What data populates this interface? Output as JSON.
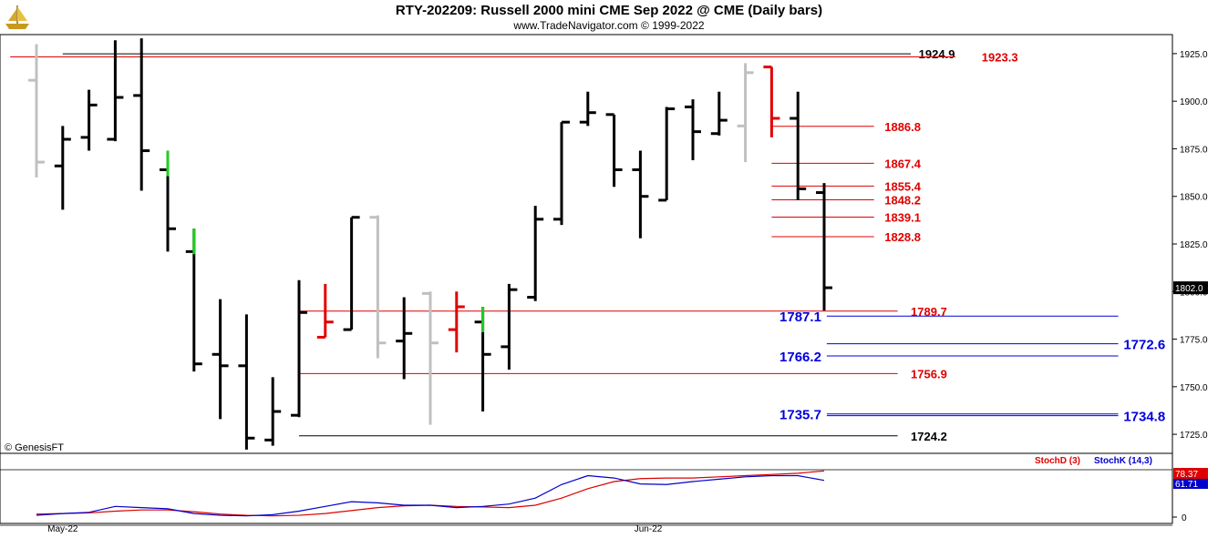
{
  "header": {
    "title": "RTY-202209:  Russell 2000 mini CME Sep 2022 @ CME  (Daily bars)",
    "subtitle": "www.TradeNavigator.com © 1999-2022"
  },
  "watermark": "© GenesisFT",
  "colors": {
    "black": "#000000",
    "red": "#e00000",
    "blue": "#0000dd",
    "gray": "#c0c0c0",
    "green": "#22cc22",
    "stochD": "#dd0000",
    "stochK": "#0000cc"
  },
  "chart_data": [
    {
      "type": "ohlc",
      "ylim": [
        1715,
        1935
      ],
      "yticks": [
        "1925.0",
        "1900.0",
        "1875.0",
        "1850.0",
        "1825.0",
        "1800.0",
        "1775.0",
        "1750.0",
        "1725.0"
      ],
      "xlabels": [
        "May-22",
        "Jun-22"
      ],
      "last_price": "1802.0",
      "bars": [
        {
          "high": 1930,
          "low": 1860,
          "open": 1911,
          "close": 1868,
          "color": "gray"
        },
        {
          "high": 1887,
          "low": 1843,
          "open": 1866,
          "close": 1880,
          "color": "black"
        },
        {
          "high": 1906,
          "low": 1874,
          "open": 1881,
          "close": 1898,
          "color": "black"
        },
        {
          "high": 1932,
          "low": 1879,
          "open": 1880,
          "close": 1902,
          "color": "black"
        },
        {
          "high": 1933,
          "low": 1853,
          "open": 1903,
          "close": 1874,
          "color": "black"
        },
        {
          "high": 1874,
          "low": 1821,
          "open": 1864,
          "close": 1833,
          "color": "black",
          "highlight": "green"
        },
        {
          "high": 1833,
          "low": 1758,
          "open": 1821,
          "close": 1762,
          "color": "black",
          "highlight": "green"
        },
        {
          "high": 1796,
          "low": 1733,
          "open": 1767,
          "close": 1761,
          "color": "black"
        },
        {
          "high": 1788,
          "low": 1717,
          "open": 1761,
          "close": 1723,
          "color": "black"
        },
        {
          "high": 1755,
          "low": 1719,
          "open": 1722,
          "close": 1737,
          "color": "black"
        },
        {
          "high": 1806,
          "low": 1734,
          "open": 1735,
          "close": 1789,
          "color": "black"
        },
        {
          "high": 1804,
          "low": 1776,
          "open": 1776,
          "close": 1784,
          "color": "red"
        },
        {
          "high": 1839,
          "low": 1780,
          "open": 1780,
          "close": 1839,
          "color": "black"
        },
        {
          "high": 1840,
          "low": 1765,
          "open": 1839,
          "close": 1773,
          "color": "gray"
        },
        {
          "high": 1797,
          "low": 1754,
          "open": 1774,
          "close": 1778,
          "color": "black"
        },
        {
          "high": 1800,
          "low": 1730,
          "open": 1799,
          "close": 1773,
          "color": "gray"
        },
        {
          "high": 1800,
          "low": 1768,
          "open": 1780,
          "close": 1792,
          "color": "red"
        },
        {
          "high": 1792,
          "low": 1737,
          "open": 1784,
          "close": 1767,
          "color": "black",
          "highlight": "green"
        },
        {
          "high": 1804,
          "low": 1759,
          "open": 1771,
          "close": 1801,
          "color": "black"
        },
        {
          "high": 1845,
          "low": 1795,
          "open": 1797,
          "close": 1838,
          "color": "black"
        },
        {
          "high": 1889,
          "low": 1835,
          "open": 1838,
          "close": 1889,
          "color": "black"
        },
        {
          "high": 1905,
          "low": 1887,
          "open": 1889,
          "close": 1894,
          "color": "black"
        },
        {
          "high": 1893,
          "low": 1855,
          "open": 1893,
          "close": 1864,
          "color": "black"
        },
        {
          "high": 1874,
          "low": 1828,
          "open": 1864,
          "close": 1850,
          "color": "black"
        },
        {
          "high": 1897,
          "low": 1848,
          "open": 1848,
          "close": 1896,
          "color": "black"
        },
        {
          "high": 1901,
          "low": 1869,
          "open": 1897,
          "close": 1884,
          "color": "black"
        },
        {
          "high": 1905,
          "low": 1882,
          "open": 1883,
          "close": 1890,
          "color": "black"
        },
        {
          "high": 1920,
          "low": 1868,
          "open": 1887,
          "close": 1915,
          "color": "gray"
        },
        {
          "high": 1918,
          "low": 1881,
          "open": 1918,
          "close": 1891,
          "color": "red"
        },
        {
          "high": 1905,
          "low": 1848,
          "open": 1891,
          "close": 1854,
          "color": "black"
        },
        {
          "high": 1857,
          "low": 1790,
          "open": 1852,
          "close": 1802,
          "color": "black"
        }
      ],
      "levels": [
        {
          "value": 1924.9,
          "label": "1924.9",
          "color": "black",
          "x_from_bar": 1,
          "x_to_bar": 33.3,
          "label_bar": 33.6
        },
        {
          "value": 1923.3,
          "label": "1923.3",
          "color": "red",
          "x_from_bar": -1,
          "x_to_bar": 35.0,
          "label_bar": 36.0
        },
        {
          "value": 1886.8,
          "label": "1886.8",
          "color": "red",
          "x_from_bar": 28.0,
          "x_to_bar": 31.9,
          "label_bar": 32.3
        },
        {
          "value": 1867.4,
          "label": "1867.4",
          "color": "red",
          "x_from_bar": 28.0,
          "x_to_bar": 31.9,
          "label_bar": 32.3
        },
        {
          "value": 1855.4,
          "label": "1855.4",
          "color": "red",
          "x_from_bar": 28.0,
          "x_to_bar": 31.9,
          "label_bar": 32.3
        },
        {
          "value": 1848.2,
          "label": "1848.2",
          "color": "red",
          "x_from_bar": 28.0,
          "x_to_bar": 31.9,
          "label_bar": 32.3
        },
        {
          "value": 1839.1,
          "label": "1839.1",
          "color": "red",
          "x_from_bar": 28.0,
          "x_to_bar": 31.9,
          "label_bar": 32.3
        },
        {
          "value": 1828.8,
          "label": "1828.8",
          "color": "red",
          "x_from_bar": 28.0,
          "x_to_bar": 31.9,
          "label_bar": 32.3
        },
        {
          "value": 1789.7,
          "label": "1789.7",
          "color": "red",
          "x_from_bar": 10.0,
          "x_to_bar": 32.8,
          "label_bar": 33.3
        },
        {
          "value": 1787.1,
          "label": "1787.1",
          "color": "blue",
          "x_from_bar": 30.1,
          "x_to_bar": 41.2,
          "label_bar": 28.3
        },
        {
          "value": 1772.6,
          "label": "1772.6",
          "color": "blue",
          "x_from_bar": 30.1,
          "x_to_bar": 41.2,
          "label_bar": 41.4
        },
        {
          "value": 1766.2,
          "label": "1766.2",
          "color": "blue",
          "x_from_bar": 30.1,
          "x_to_bar": 41.2,
          "label_bar": 28.3
        },
        {
          "value": 1756.9,
          "label": "1756.9",
          "color": "red",
          "x_from_bar": 10.0,
          "x_to_bar": 32.8,
          "label_bar": 33.3
        },
        {
          "value": 1735.7,
          "label": "1735.7",
          "color": "blue",
          "x_from_bar": 30.1,
          "x_to_bar": 41.2,
          "label_bar": 28.3
        },
        {
          "value": 1734.8,
          "label": "1734.8",
          "color": "blue",
          "x_from_bar": 30.1,
          "x_to_bar": 41.2,
          "label_bar": 41.4
        },
        {
          "value": 1724.2,
          "label": "1724.2",
          "color": "black",
          "x_from_bar": 10.0,
          "x_to_bar": 32.8,
          "label_bar": 33.3
        }
      ]
    },
    {
      "type": "line",
      "ylim": [
        0,
        100
      ],
      "ytick": "0",
      "legend": [
        "StochD (3)",
        "StochK (14,3)"
      ],
      "stochD_value": "78.37",
      "stochK_value": "61.71",
      "series": [
        {
          "name": "StochD (3)",
          "color": "stochD",
          "values": [
            5,
            6,
            7,
            10,
            12,
            12,
            9,
            5,
            3,
            2,
            3,
            6,
            11,
            16,
            19,
            20,
            18,
            17,
            16,
            20,
            32,
            48,
            60,
            65,
            66,
            66,
            68,
            70,
            72,
            74,
            78
          ]
        },
        {
          "name": "StochK (14,3)",
          "color": "stochK",
          "values": [
            3,
            6,
            8,
            18,
            16,
            14,
            6,
            3,
            2,
            4,
            10,
            18,
            26,
            24,
            20,
            20,
            16,
            18,
            22,
            32,
            55,
            70,
            66,
            56,
            55,
            60,
            64,
            68,
            70,
            70,
            62
          ]
        }
      ]
    }
  ]
}
